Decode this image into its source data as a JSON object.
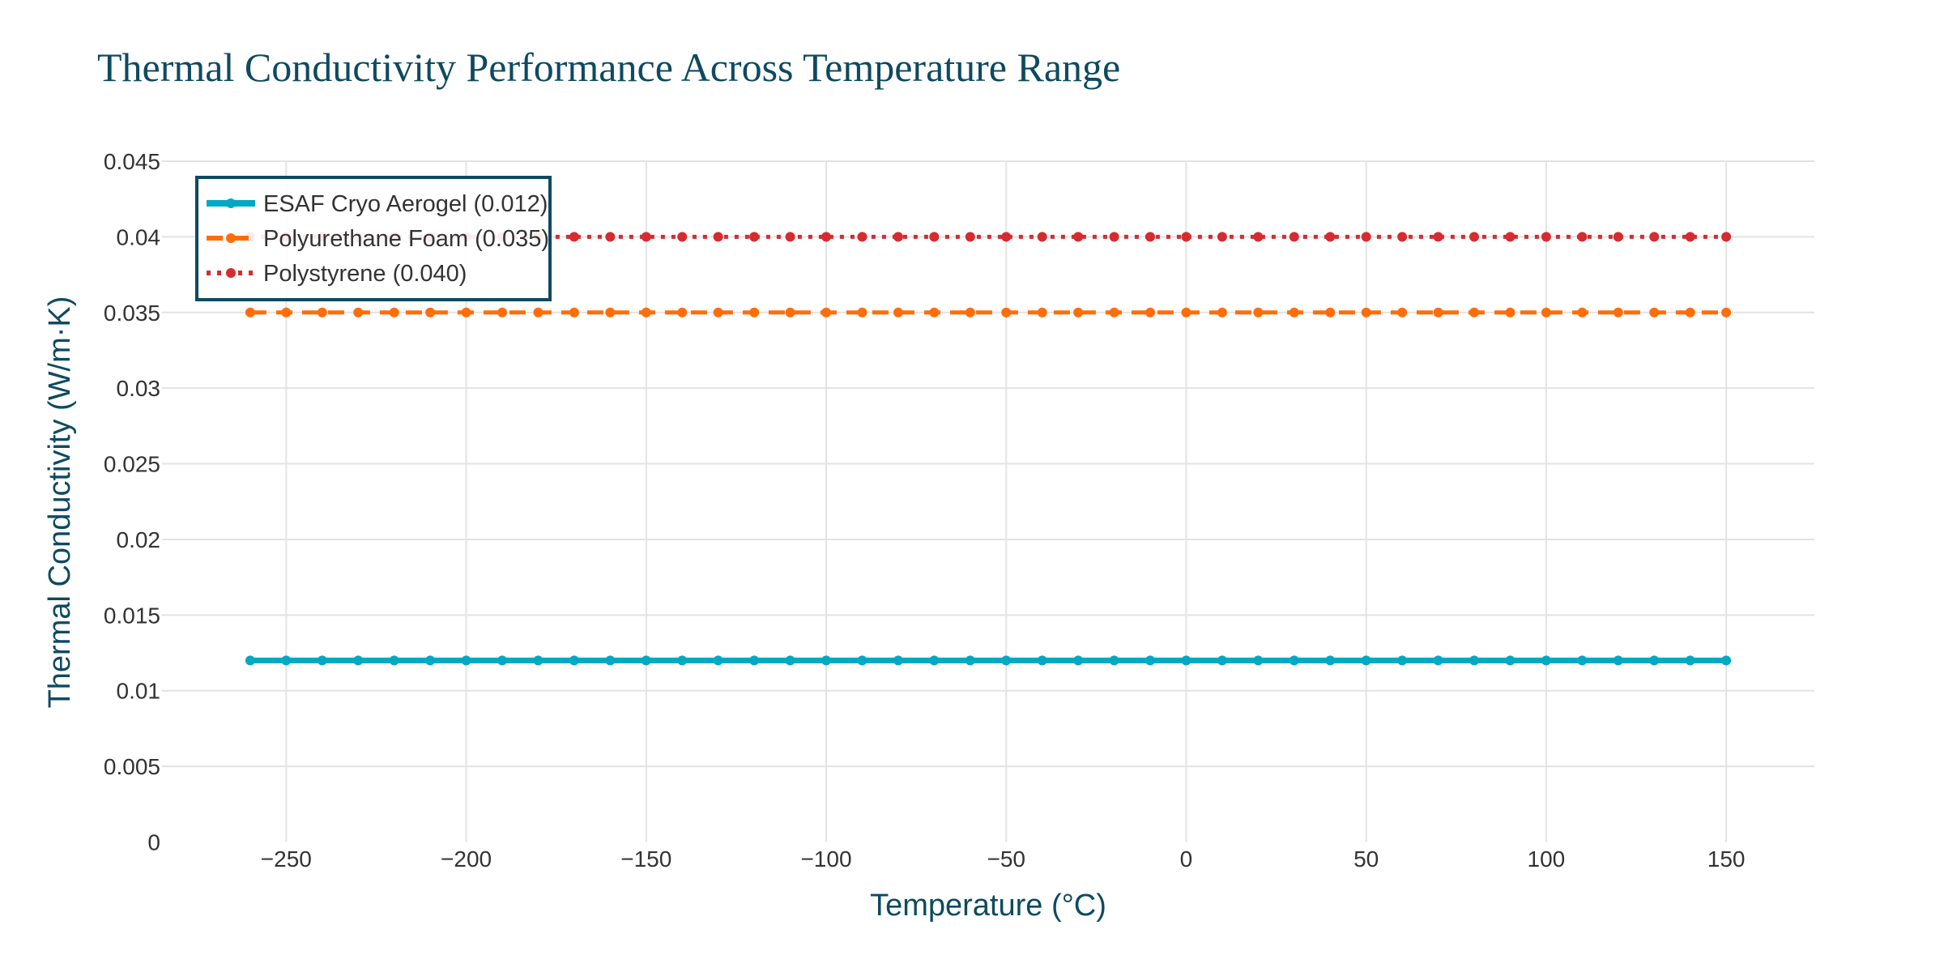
{
  "chart_data": {
    "type": "line",
    "title": "Thermal Conductivity Performance Across Temperature Range",
    "xlabel": "Temperature (°C)",
    "ylabel": "Thermal Conductivity (W/m·K)",
    "xlim": [
      -284.5,
      174.5
    ],
    "ylim": [
      0,
      0.045
    ],
    "xticks": [
      -250,
      -200,
      -150,
      -100,
      -50,
      0,
      50,
      100,
      150
    ],
    "xtick_labels": [
      "−250",
      "−200",
      "−150",
      "−100",
      "−50",
      "0",
      "50",
      "100",
      "150"
    ],
    "yticks": [
      0,
      0.005,
      0.01,
      0.015,
      0.02,
      0.025,
      0.03,
      0.035,
      0.04,
      0.045
    ],
    "ytick_labels": [
      "0",
      "0.005",
      "0.01",
      "0.015",
      "0.02",
      "0.025",
      "0.03",
      "0.035",
      "0.04",
      "0.045"
    ],
    "grid": true,
    "legend_position": "top-left",
    "x": [
      -260,
      -250,
      -240,
      -230,
      -220,
      -210,
      -200,
      -190,
      -180,
      -170,
      -160,
      -150,
      -140,
      -130,
      -120,
      -110,
      -100,
      -90,
      -80,
      -70,
      -60,
      -50,
      -40,
      -30,
      -20,
      -10,
      0,
      10,
      20,
      30,
      40,
      50,
      60,
      70,
      80,
      90,
      100,
      110,
      120,
      130,
      140,
      150
    ],
    "series": [
      {
        "name": "ESAF Cryo Aerogel (0.012)",
        "value": 0.012,
        "color": "#00a9c1",
        "dash": "solid"
      },
      {
        "name": "Polyurethane Foam (0.035)",
        "value": 0.035,
        "color": "#ff6d0a",
        "dash": "dash"
      },
      {
        "name": "Polystyrene (0.040)",
        "value": 0.04,
        "color": "#d62c2f",
        "dash": "dot"
      }
    ]
  }
}
